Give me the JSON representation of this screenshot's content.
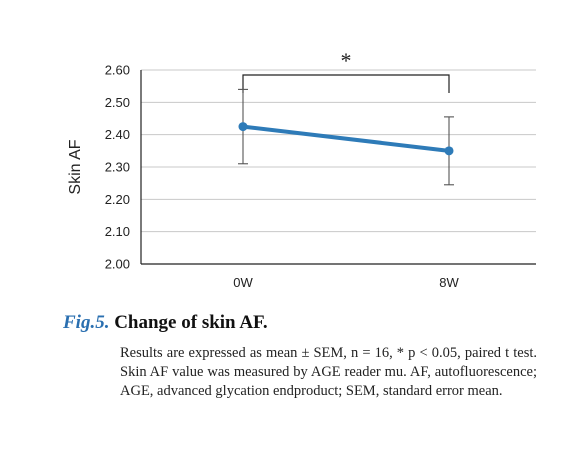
{
  "chart_data": {
    "type": "line",
    "categories": [
      "0W",
      "8W"
    ],
    "series": [
      {
        "values": [
          2.425,
          2.35
        ],
        "error": [
          0.115,
          0.105
        ],
        "color": "#2e7bb8"
      }
    ],
    "ylabel": "Skin AF",
    "xlabel": "",
    "ylim": [
      2.0,
      2.6
    ],
    "yticks": [
      "2.00",
      "2.10",
      "2.20",
      "2.30",
      "2.40",
      "2.50",
      "2.60"
    ],
    "grid": true,
    "significance": {
      "from": "0W",
      "to": "8W",
      "label": "*"
    }
  },
  "caption": {
    "fig_label": "Fig.5.",
    "heading": "Change of skin AF.",
    "text": "Results are expressed as mean ± SEM, n = 16, * p < 0.05, paired t test. Skin AF value was measured by AGE reader mu. AF, autofluorescence; AGE, advanced glycation endproduct; SEM, standard error mean."
  }
}
